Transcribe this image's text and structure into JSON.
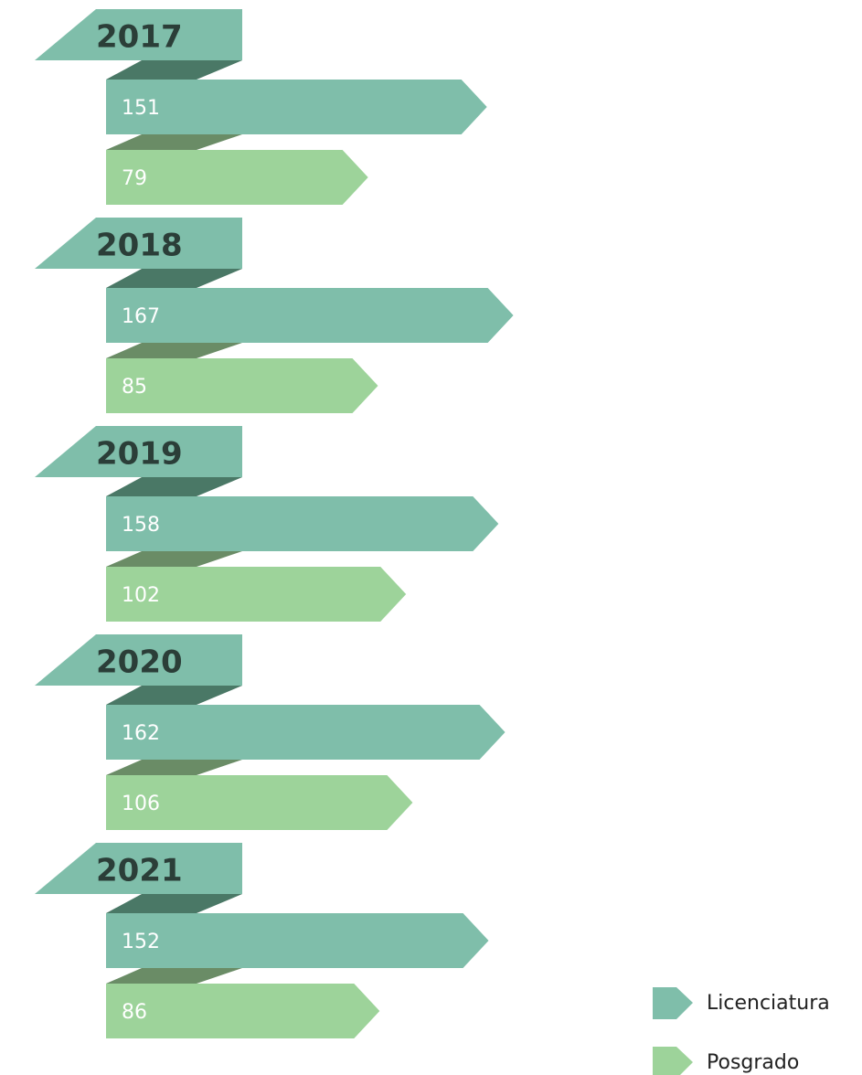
{
  "chart_data": {
    "type": "bar",
    "categories": [
      "2017",
      "2018",
      "2019",
      "2020",
      "2021"
    ],
    "series": [
      {
        "name": "Licenciatura",
        "color": "#7fbeaa",
        "values": [
          151,
          167,
          158,
          162,
          152
        ]
      },
      {
        "name": "Posgrado",
        "color": "#9dd39a",
        "values": [
          79,
          85,
          102,
          106,
          86
        ]
      }
    ]
  }
}
